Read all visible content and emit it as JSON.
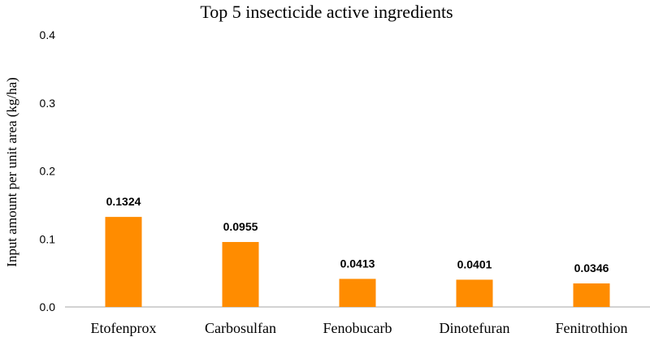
{
  "chart_data": {
    "type": "bar",
    "title": "Top 5 insecticide active ingredients",
    "ylabel": "Input amount per unit area (kg/ha)",
    "xlabel": "",
    "categories": [
      "Etofenprox",
      "Carbosulfan",
      "Fenobucarb",
      "Dinotefuran",
      "Fenitrothion"
    ],
    "values": [
      0.1324,
      0.0955,
      0.0413,
      0.0401,
      0.0346
    ],
    "data_labels": [
      "0.1324",
      "0.0955",
      "0.0413",
      "0.0401",
      "0.0346"
    ],
    "ylim": [
      0,
      0.4
    ],
    "yticks": [
      "0.0",
      "0.1",
      "0.2",
      "0.3",
      "0.4"
    ],
    "grid": false,
    "bar_color": "#ff8c00"
  }
}
